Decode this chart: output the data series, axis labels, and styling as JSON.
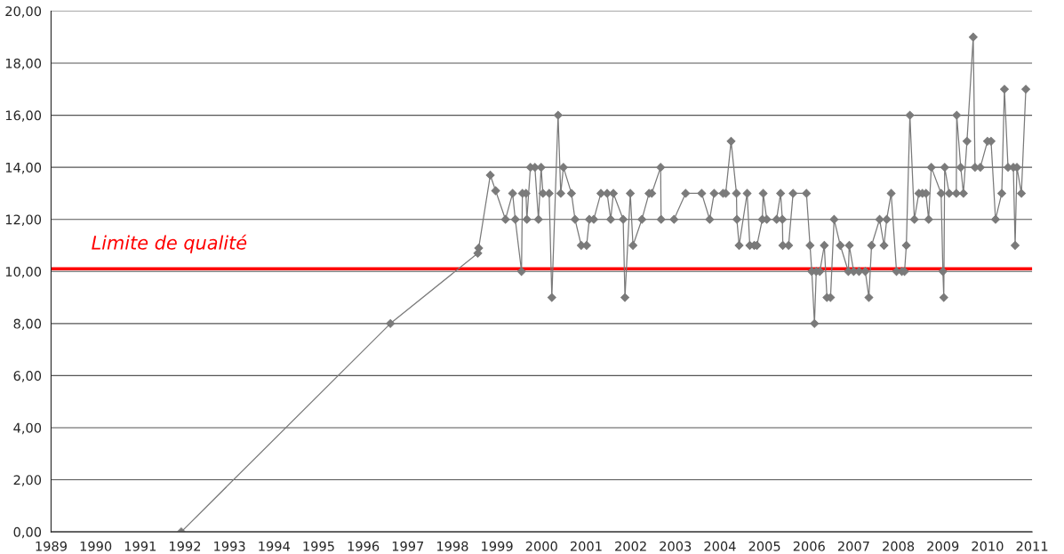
{
  "chart_data": {
    "type": "line",
    "x": [
      1991.92,
      1996.61,
      1998.57,
      1998.59,
      1998.85,
      1998.97,
      1999.19,
      1999.35,
      1999.41,
      1999.55,
      1999.57,
      1999.65,
      1999.67,
      1999.75,
      1999.85,
      1999.93,
      1999.99,
      2000.03,
      2000.17,
      2000.23,
      2000.37,
      2000.43,
      2000.49,
      2000.67,
      2000.75,
      2000.89,
      2001.01,
      2001.07,
      2001.17,
      2001.33,
      2001.47,
      2001.55,
      2001.61,
      2001.83,
      2001.87,
      2001.99,
      2002.05,
      2002.25,
      2002.41,
      2002.47,
      2002.67,
      2002.68,
      2002.97,
      2003.23,
      2003.59,
      2003.77,
      2003.87,
      2004.07,
      2004.13,
      2004.25,
      2004.37,
      2004.38,
      2004.43,
      2004.61,
      2004.67,
      2004.77,
      2004.83,
      2004.95,
      2004.97,
      2005.05,
      2005.27,
      2005.36,
      2005.4,
      2005.41,
      2005.54,
      2005.64,
      2005.94,
      2006.02,
      2006.06,
      2006.12,
      2006.16,
      2006.24,
      2006.34,
      2006.4,
      2006.48,
      2006.56,
      2006.7,
      2006.88,
      2006.9,
      2007.0,
      2007.12,
      2007.26,
      2007.34,
      2007.4,
      2007.58,
      2007.68,
      2007.74,
      2007.84,
      2007.96,
      2008.08,
      2008.14,
      2008.18,
      2008.26,
      2008.36,
      2008.46,
      2008.54,
      2008.62,
      2008.68,
      2008.74,
      2008.96,
      2009.0,
      2009.02,
      2009.04,
      2009.14,
      2009.3,
      2009.31,
      2009.4,
      2009.46,
      2009.54,
      2009.68,
      2009.72,
      2009.84,
      2010.0,
      2010.08,
      2010.18,
      2010.32,
      2010.38,
      2010.46,
      2010.58,
      2010.62,
      2010.66,
      2010.76,
      2010.86
    ],
    "series": [
      {
        "color": "#7a7a7a",
        "values": [
          0,
          8,
          10.7,
          10.9,
          13.7,
          13.1,
          12,
          13,
          12,
          10,
          13,
          13,
          12,
          14,
          14,
          12,
          14,
          13,
          13,
          9,
          16,
          13,
          14,
          13,
          12,
          11,
          11,
          12,
          12,
          13,
          13,
          12,
          13,
          12,
          9,
          13,
          11,
          12,
          13,
          13,
          14,
          12,
          12,
          13,
          13,
          12,
          13,
          13,
          13,
          15,
          13,
          12,
          11,
          13,
          11,
          11,
          11,
          12,
          13,
          12,
          12,
          13,
          12,
          11,
          11,
          13,
          13,
          11,
          10,
          8,
          10,
          10,
          11,
          9,
          9,
          12,
          11,
          10,
          11,
          10,
          10,
          10,
          9,
          11,
          12,
          11,
          12,
          13,
          10,
          10,
          10,
          11,
          16,
          12,
          13,
          13,
          13,
          12,
          14,
          13,
          10,
          9,
          14,
          13,
          13,
          16,
          14,
          13,
          15,
          19,
          14,
          14,
          15,
          15,
          12,
          13,
          17,
          14,
          14,
          11,
          14,
          13,
          17
        ]
      }
    ],
    "xlim": [
      1989,
      2011
    ],
    "xticks": [
      1989,
      1990,
      1991,
      1992,
      1993,
      1994,
      1995,
      1996,
      1997,
      1998,
      1999,
      2000,
      2001,
      2002,
      2003,
      2004,
      2005,
      2006,
      2007,
      2008,
      2009,
      2010,
      2011
    ],
    "ylim": [
      0,
      20
    ],
    "yticks": [
      {
        "value": 0,
        "label": "0,00"
      },
      {
        "value": 2,
        "label": "2,00"
      },
      {
        "value": 4,
        "label": "4,00"
      },
      {
        "value": 6,
        "label": "6,00"
      },
      {
        "value": 8,
        "label": "8,00"
      },
      {
        "value": 10,
        "label": "10,00"
      },
      {
        "value": 12,
        "label": "12,00"
      },
      {
        "value": 14,
        "label": "14,00"
      },
      {
        "value": 16,
        "label": "16,00"
      },
      {
        "value": 18,
        "label": "18,00"
      },
      {
        "value": 20,
        "label": "20,00"
      }
    ],
    "ref_lines": [
      {
        "axis": "y",
        "value": 10.1,
        "label": "Limite de qualité",
        "color": "#ff0000"
      }
    ],
    "grid": "y",
    "marker": "diamond",
    "line_style": "solid"
  }
}
